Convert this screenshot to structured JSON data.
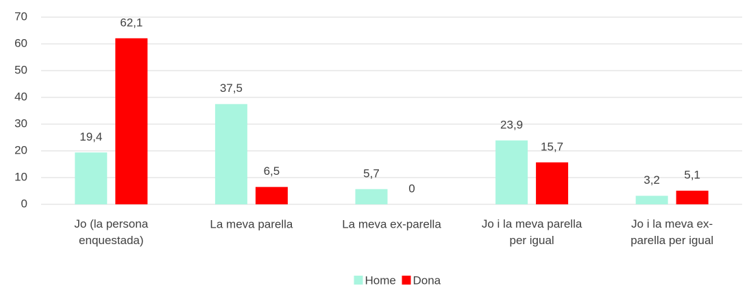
{
  "chart_data": {
    "type": "bar",
    "categories": [
      "Jo (la persona\nenquestada)",
      "La meva parella",
      "La meva ex-parella",
      "Jo i la meva parella\nper igual",
      "Jo i la meva ex-\nparella per igual"
    ],
    "series": [
      {
        "name": "Home",
        "color": "#a9f5df",
        "values": [
          19.4,
          37.5,
          5.7,
          23.9,
          3.2
        ],
        "value_labels": [
          "19,4",
          "37,5",
          "5,7",
          "23,9",
          "3,2"
        ]
      },
      {
        "name": "Dona",
        "color": "#ff0000",
        "values": [
          62.1,
          6.5,
          0,
          15.7,
          5.1
        ],
        "value_labels": [
          "62,1",
          "6,5",
          "0",
          "15,7",
          "5,1"
        ]
      }
    ],
    "ylim": [
      0,
      70
    ],
    "yticks": [
      0,
      10,
      20,
      30,
      40,
      50,
      60,
      70
    ],
    "grid": true,
    "legend": "bottom"
  }
}
